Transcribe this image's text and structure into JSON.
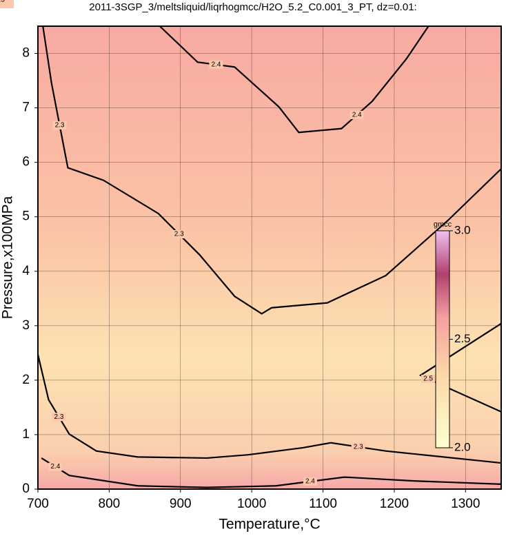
{
  "chart_data": {
    "type": "contour",
    "title": "2011-3SGP_3/meltsliquid/liqrhogmcc/H2O_5.2_C0.001_3_PT, dz=0.01:",
    "x_label": "Temperature,°C",
    "y_label": "Pressure,x100MPa",
    "xlim": [
      700,
      1350
    ],
    "ylim": [
      0,
      8.5
    ],
    "xticks": [
      700,
      800,
      900,
      1000,
      1100,
      1200,
      1300
    ],
    "yticks": [
      0,
      1,
      2,
      3,
      4,
      5,
      6,
      7,
      8
    ],
    "grid": true,
    "series": [
      {
        "level": 2.4,
        "color": "#000000",
        "x": [
          871,
          924,
          976,
          1038,
          1066,
          1126,
          1169,
          1217,
          1248
        ],
        "y": [
          8.5,
          7.84,
          7.75,
          7.02,
          6.55,
          6.62,
          7.12,
          7.9,
          8.5
        ]
      },
      {
        "level": 2.3,
        "color": "#000000",
        "x": [
          707,
          719,
          742,
          792,
          869,
          927,
          976,
          1014,
          1028,
          1106,
          1188,
          1275,
          1350
        ],
        "y": [
          8.5,
          7.46,
          5.9,
          5.67,
          5.06,
          4.3,
          3.54,
          3.22,
          3.33,
          3.42,
          3.92,
          4.93,
          5.88
        ]
      },
      {
        "level": 2.3,
        "color": "#000000",
        "x": [
          700,
          715,
          744,
          782,
          840,
          937,
          995,
          1072,
          1111,
          1188,
          1350
        ],
        "y": [
          2.47,
          1.64,
          1.01,
          0.7,
          0.59,
          0.57,
          0.63,
          0.76,
          0.85,
          0.7,
          0.48
        ]
      },
      {
        "level": 2.4,
        "color": "#000000",
        "x": [
          705,
          744,
          840,
          937,
          1034,
          1130,
          1227,
          1350
        ],
        "y": [
          0.57,
          0.25,
          0.06,
          0.03,
          0.06,
          0.22,
          0.15,
          0.09
        ]
      },
      {
        "level": 2.5,
        "color": "#000000",
        "x": [
          1350,
          1258,
          1237,
          1350
        ],
        "y": [
          1.42,
          1.96,
          2.09,
          3.04
        ]
      }
    ],
    "colorbar": {
      "label": "gmcc",
      "lim": [
        2,
        3
      ],
      "ticks": [
        {
          "value": 2,
          "label": "2.0"
        },
        2.5,
        {
          "value": 3,
          "label": "3.0"
        }
      ]
    }
  }
}
